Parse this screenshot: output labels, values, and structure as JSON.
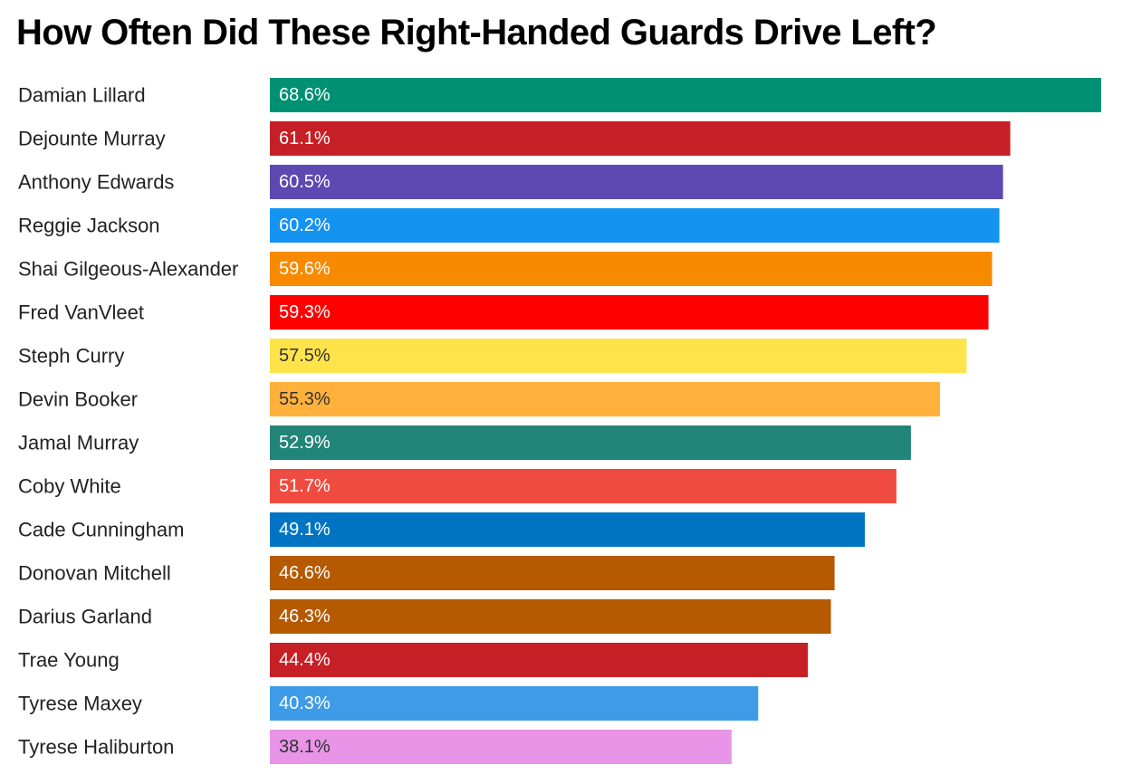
{
  "chart_data": {
    "type": "bar",
    "orientation": "horizontal",
    "title": "How Often Did These Right-Handed Guards Drive Left?",
    "xlabel": "",
    "ylabel": "",
    "xlim": [
      0,
      68.6
    ],
    "grid": false,
    "value_suffix": "%",
    "categories": [
      "Damian Lillard",
      "Dejounte Murray",
      "Anthony Edwards",
      "Reggie Jackson",
      "Shai Gilgeous-Alexander",
      "Fred VanVleet",
      "Steph Curry",
      "Devin Booker",
      "Jamal Murray",
      "Coby White",
      "Cade Cunningham",
      "Donovan Mitchell",
      "Darius Garland",
      "Trae Young",
      "Tyrese Maxey",
      "Tyrese Haliburton"
    ],
    "values": [
      68.6,
      61.1,
      60.5,
      60.2,
      59.6,
      59.3,
      57.5,
      55.3,
      52.9,
      51.7,
      49.1,
      46.6,
      46.3,
      44.4,
      40.3,
      38.1
    ],
    "value_labels": [
      "68.6%",
      "61.1%",
      "60.5%",
      "60.2%",
      "59.6%",
      "59.3%",
      "57.5%",
      "55.3%",
      "52.9%",
      "51.7%",
      "49.1%",
      "46.6%",
      "46.3%",
      "44.4%",
      "40.3%",
      "38.1%"
    ],
    "colors": [
      "#009174",
      "#C62026",
      "#5C49B2",
      "#1593F1",
      "#F88A00",
      "#FE0000",
      "#FFE34B",
      "#FFB13B",
      "#228579",
      "#EF4B40",
      "#0074C3",
      "#B55A00",
      "#B55A00",
      "#C62026",
      "#3E9BE8",
      "#E894E7"
    ],
    "label_colors": [
      "#ffffff",
      "#ffffff",
      "#ffffff",
      "#ffffff",
      "#ffffff",
      "#ffffff",
      "#333333",
      "#333333",
      "#ffffff",
      "#ffffff",
      "#ffffff",
      "#ffffff",
      "#ffffff",
      "#ffffff",
      "#ffffff",
      "#333333"
    ]
  }
}
